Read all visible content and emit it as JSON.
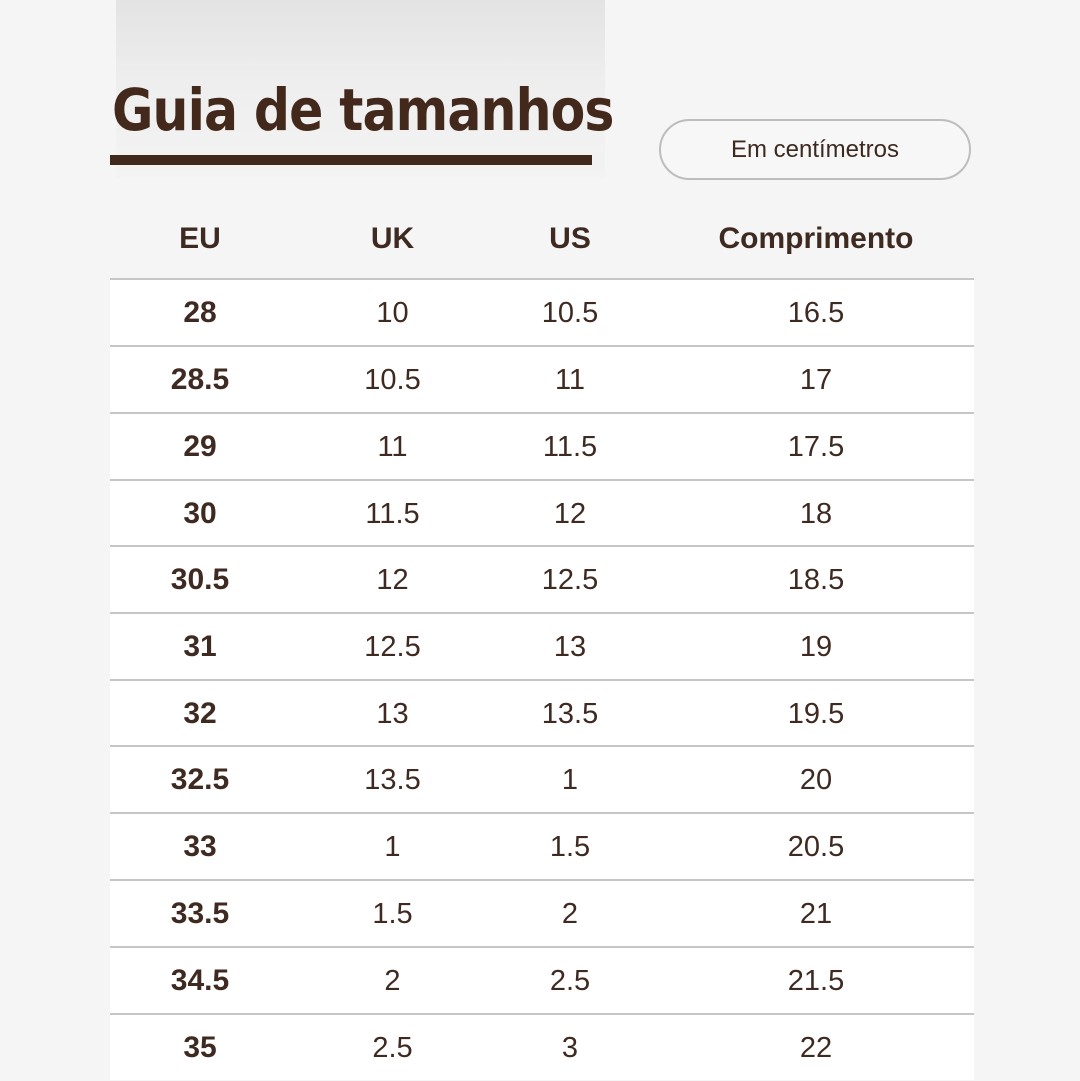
{
  "title": "Guia de tamanhos",
  "unit_label": "Em centímetros",
  "headers": {
    "eu": "EU",
    "uk": "UK",
    "us": "US",
    "length": "Comprimento"
  },
  "rows": [
    {
      "eu": "28",
      "uk": "10",
      "us": "10.5",
      "length": "16.5"
    },
    {
      "eu": "28.5",
      "uk": "10.5",
      "us": "11",
      "length": "17"
    },
    {
      "eu": "29",
      "uk": "11",
      "us": "11.5",
      "length": "17.5"
    },
    {
      "eu": "30",
      "uk": "11.5",
      "us": "12",
      "length": "18"
    },
    {
      "eu": "30.5",
      "uk": "12",
      "us": "12.5",
      "length": "18.5"
    },
    {
      "eu": "31",
      "uk": "12.5",
      "us": "13",
      "length": "19"
    },
    {
      "eu": "32",
      "uk": "13",
      "us": "13.5",
      "length": "19.5"
    },
    {
      "eu": "32.5",
      "uk": "13.5",
      "us": "1",
      "length": "20"
    },
    {
      "eu": "33",
      "uk": "1",
      "us": "1.5",
      "length": "20.5"
    },
    {
      "eu": "33.5",
      "uk": "1.5",
      "us": "2",
      "length": "21"
    },
    {
      "eu": "34.5",
      "uk": "2",
      "us": "2.5",
      "length": "21.5"
    },
    {
      "eu": "35",
      "uk": "2.5",
      "us": "3",
      "length": "22"
    }
  ],
  "colors": {
    "text": "#3e2a21",
    "title": "#43291c",
    "row_background": "#ffffff",
    "page_background": "#f5f5f5",
    "divider": "#c6c6c6"
  }
}
